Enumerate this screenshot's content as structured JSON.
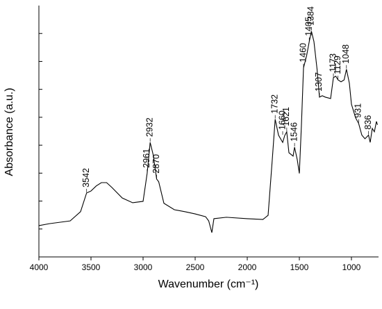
{
  "chart_data": {
    "type": "line",
    "x_label": "Wavenumber (cm⁻¹)",
    "y_label": "Absorbance (a.u.)",
    "xlim": [
      4000,
      740
    ],
    "xticks": [
      4000,
      3500,
      3000,
      2500,
      2000,
      1500,
      1000
    ],
    "ylim": [
      0,
      9
    ],
    "yticks": [
      1,
      2,
      3,
      4,
      5,
      6,
      7,
      8
    ],
    "x": [
      4000,
      3900,
      3800,
      3700,
      3600,
      3542,
      3500,
      3450,
      3400,
      3350,
      3300,
      3200,
      3100,
      3000,
      2961,
      2932,
      2900,
      2870,
      2850,
      2800,
      2700,
      2600,
      2500,
      2400,
      2370,
      2340,
      2320,
      2200,
      2000,
      1850,
      1800,
      1760,
      1732,
      1700,
      1660,
      1640,
      1621,
      1600,
      1560,
      1546,
      1520,
      1500,
      1480,
      1460,
      1430,
      1405,
      1384,
      1360,
      1330,
      1307,
      1280,
      1250,
      1200,
      1173,
      1150,
      1129,
      1100,
      1070,
      1048,
      1020,
      1000,
      960,
      931,
      900,
      870,
      836,
      820,
      800,
      780,
      760,
      750
    ],
    "series": [
      {
        "color": "#000000",
        "values": [
          1.12,
          1.19,
          1.24,
          1.29,
          1.62,
          2.29,
          2.36,
          2.54,
          2.66,
          2.66,
          2.49,
          2.11,
          1.94,
          1.99,
          2.99,
          4.1,
          3.61,
          2.79,
          2.69,
          1.92,
          1.69,
          1.62,
          1.54,
          1.44,
          1.29,
          0.87,
          1.37,
          1.42,
          1.37,
          1.34,
          1.49,
          3.48,
          4.93,
          4.36,
          4.1,
          4.35,
          4.48,
          3.73,
          3.61,
          3.93,
          3.48,
          2.99,
          4.73,
          6.77,
          7.21,
          7.71,
          8.08,
          7.71,
          6.72,
          5.72,
          5.77,
          5.72,
          5.67,
          6.42,
          6.47,
          6.34,
          6.27,
          6.34,
          6.72,
          6.22,
          5.47,
          4.98,
          4.78,
          4.36,
          4.23,
          4.36,
          4.1,
          4.6,
          4.48,
          4.85,
          4.73
        ]
      }
    ],
    "peaks": [
      3542,
      2961,
      2932,
      2870,
      1732,
      1660,
      1621,
      1546,
      1460,
      1405,
      1384,
      1307,
      1173,
      1129,
      1048,
      931,
      836
    ]
  }
}
